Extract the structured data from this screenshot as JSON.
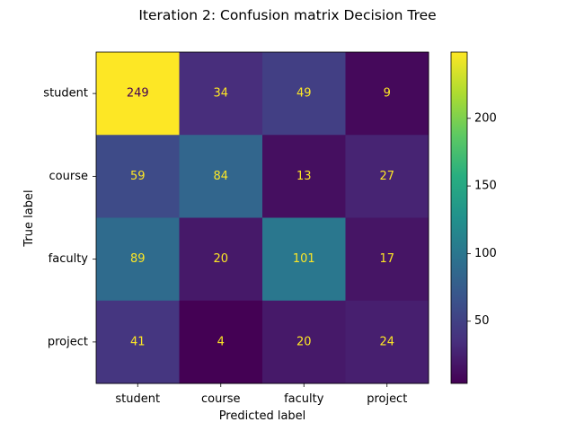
{
  "chart_data": {
    "type": "heatmap",
    "title": "Iteration 2: Confusion matrix Decision Tree",
    "xlabel": "Predicted label",
    "ylabel": "True label",
    "x_categories": [
      "student",
      "course",
      "faculty",
      "project"
    ],
    "y_categories": [
      "student",
      "course",
      "faculty",
      "project"
    ],
    "values": [
      [
        249,
        34,
        49,
        9
      ],
      [
        59,
        84,
        13,
        27
      ],
      [
        89,
        20,
        101,
        17
      ],
      [
        41,
        4,
        20,
        24
      ]
    ],
    "colormap": "viridis",
    "colorbar": {
      "range": [
        4,
        249
      ],
      "ticks": [
        50,
        100,
        150,
        200
      ]
    },
    "annotation_colors": {
      "on_dark": "#fde725",
      "on_light": "#440154"
    }
  }
}
